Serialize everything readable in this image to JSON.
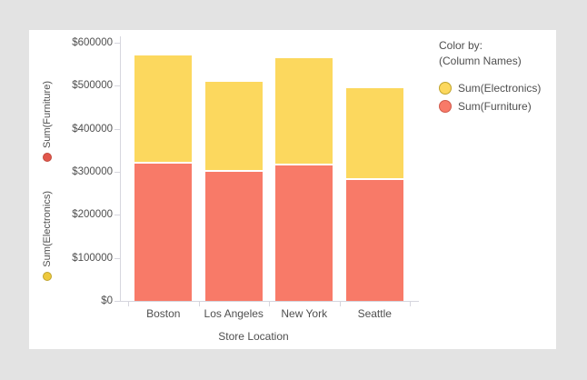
{
  "app": {
    "background_color": "#e3e3e3",
    "panel_color": "#ffffff",
    "axis_color": "#d6d6de",
    "text_color": "#4f4f4f"
  },
  "chart_data": {
    "type": "bar",
    "stacked": true,
    "xlabel": "Store Location",
    "categories": [
      "Boston",
      "Los Angeles",
      "New York",
      "Seattle"
    ],
    "series": [
      {
        "name": "Sum(Furniture)",
        "color": "#f87a68",
        "values": [
          320000,
          300000,
          315000,
          280000
        ]
      },
      {
        "name": "Sum(Electronics)",
        "color": "#fcd85e",
        "values": [
          250000,
          210000,
          250000,
          215000
        ]
      }
    ],
    "ylim": [
      0,
      600000
    ],
    "grid": false,
    "y_ticks": [
      {
        "value": 600000,
        "label": "$600000"
      },
      {
        "value": 500000,
        "label": "$500000"
      },
      {
        "value": 400000,
        "label": "$400000"
      },
      {
        "value": 300000,
        "label": "$300000"
      },
      {
        "value": 200000,
        "label": "$200000"
      },
      {
        "value": 100000,
        "label": "$100000"
      },
      {
        "value": 0,
        "label": "$0"
      }
    ],
    "legend": {
      "position": "right",
      "title": "Color by:",
      "subtitle": "(Column Names)",
      "entries": [
        {
          "label": "Sum(Electronics)",
          "color": "#fcd85e",
          "border_color": "#bfa42e"
        },
        {
          "label": "Sum(Furniture)",
          "color": "#f87a68",
          "border_color": "#cf5a4c"
        }
      ]
    },
    "y_axis_series": [
      {
        "label": "Sum(Furniture)",
        "dot_color": "#e2574c",
        "dot_border": "#c04a3e"
      },
      {
        "label": "Sum(Electronics)",
        "dot_color": "#eec93d",
        "dot_border": "#bfa42e"
      }
    ]
  }
}
